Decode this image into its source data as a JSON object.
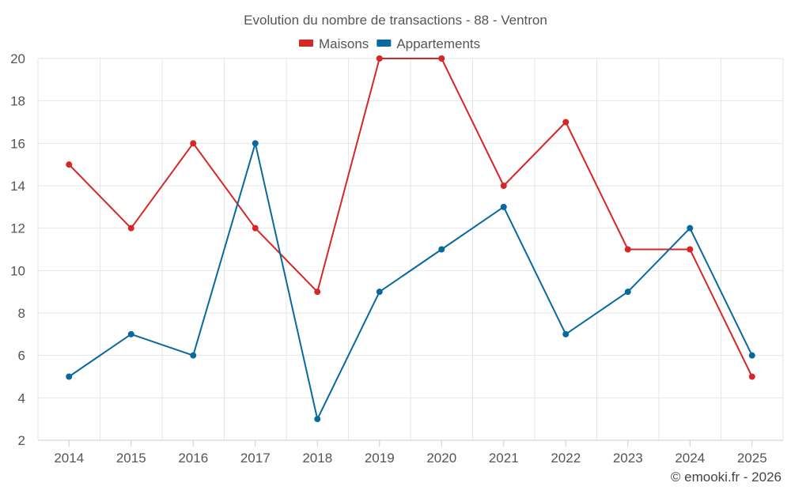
{
  "chart_data": {
    "type": "line",
    "title": "Evolution du nombre de transactions - 88 - Ventron",
    "categories": [
      "2014",
      "2015",
      "2016",
      "2017",
      "2018",
      "2019",
      "2020",
      "2021",
      "2022",
      "2023",
      "2024",
      "2025"
    ],
    "series": [
      {
        "name": "Maisons",
        "color": "#d62728",
        "values": [
          15,
          12,
          16,
          12,
          9,
          20,
          20,
          14,
          17,
          11,
          11,
          5
        ]
      },
      {
        "name": "Appartements",
        "color": "#0868a0",
        "values": [
          5,
          7,
          6,
          16,
          3,
          9,
          11,
          13,
          7,
          9,
          12,
          6
        ]
      }
    ],
    "ylim": [
      2,
      20
    ],
    "yticks": [
      2,
      4,
      6,
      8,
      10,
      12,
      14,
      16,
      18,
      20
    ],
    "xlabel": "",
    "ylabel": "",
    "grid": true,
    "legend_position": "top-center"
  },
  "credit": "© emooki.fr - 2026"
}
